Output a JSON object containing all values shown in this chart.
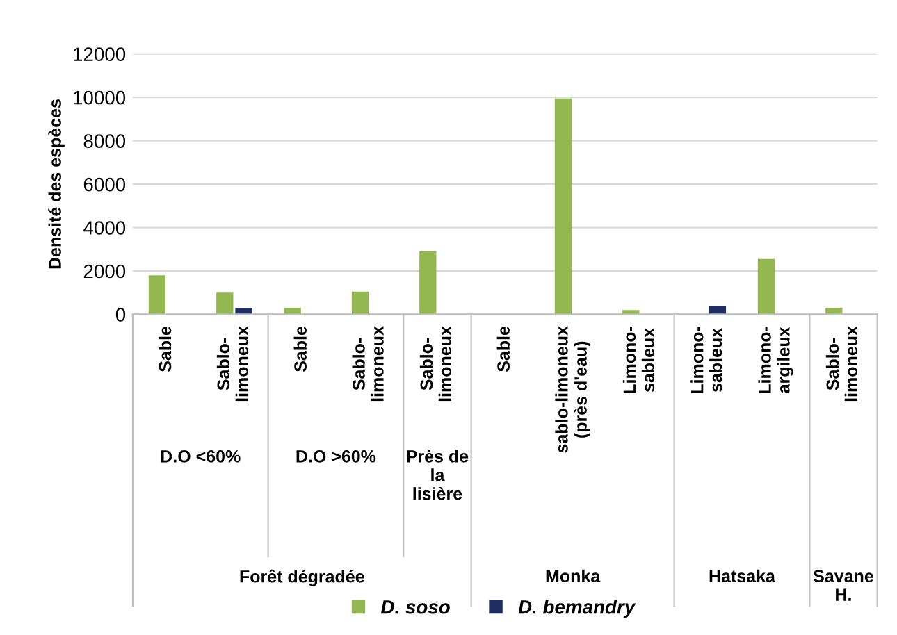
{
  "chart_data": {
    "type": "bar",
    "ylabel": "Densité des espèces",
    "categories": [
      "Sable",
      "Sablo-\nlimoneux",
      "Sable",
      "Sablo-\nlimoneux",
      "Sablo-\nlimoneux",
      "Sable",
      "sablo-limoneux\n(près d'eau)",
      "Limono-\nsableux",
      "Limono-\nsableux",
      "Limono-\nargileux",
      "Sablo-\nlimoneux"
    ],
    "series": [
      {
        "name": "D. soso",
        "color": "#92b84f",
        "values": [
          1800,
          1000,
          300,
          1050,
          2900,
          0,
          9950,
          200,
          0,
          2550,
          300
        ]
      },
      {
        "name": "D. bemandry",
        "color": "#1f2d64",
        "values": [
          0,
          300,
          0,
          0,
          0,
          0,
          0,
          0,
          400,
          0,
          0
        ]
      }
    ],
    "annotations": [
      "D.O <60%",
      "D.O >60%",
      "Près de\nla\nlisière",
      "Forêt dégradée",
      "Monka",
      "Hatsaka",
      "Savane\nH."
    ],
    "ylim": [
      0,
      12000
    ],
    "yticks": [
      0,
      2000,
      4000,
      6000,
      8000,
      10000,
      12000
    ],
    "grid": "y",
    "legend": "bottom"
  }
}
